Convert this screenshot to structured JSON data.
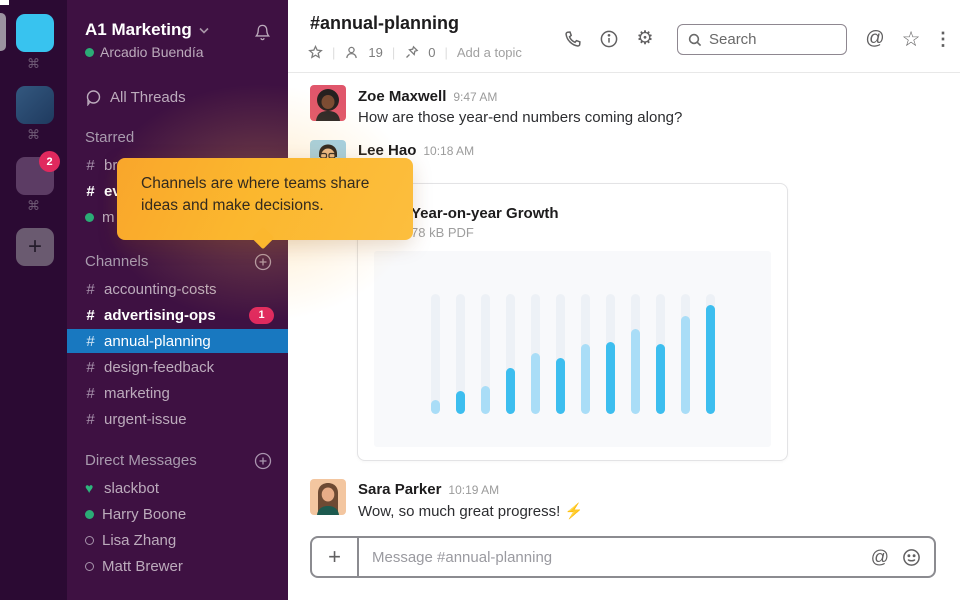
{
  "rail": {
    "workspaces": [
      {
        "name": "workspace-1",
        "badge": ""
      },
      {
        "name": "workspace-2",
        "badge": ""
      },
      {
        "name": "workspace-3",
        "badge": "2"
      }
    ],
    "shortcut_glyph": "⌘",
    "add_label": "+"
  },
  "sidebar": {
    "team_name": "A1 Marketing",
    "user_name": "Arcadio Buendía",
    "all_threads_label": "All Threads",
    "starred": {
      "title": "Starred",
      "items": [
        {
          "prefix": "#",
          "label": "br"
        },
        {
          "prefix": "#",
          "label": "ev"
        },
        {
          "prefix": "dot",
          "label": "m"
        }
      ]
    },
    "channels": {
      "title": "Channels",
      "items": [
        {
          "label": "accounting-costs",
          "badge": ""
        },
        {
          "label": "advertising-ops",
          "badge": "1"
        },
        {
          "label": "annual-planning",
          "badge": ""
        },
        {
          "label": "design-feedback",
          "badge": ""
        },
        {
          "label": "marketing",
          "badge": ""
        },
        {
          "label": "urgent-issue",
          "badge": ""
        }
      ]
    },
    "dms": {
      "title": "Direct Messages",
      "items": [
        {
          "label": "slackbot",
          "presence": "heart"
        },
        {
          "label": "Harry Boone",
          "presence": "online"
        },
        {
          "label": "Lisa Zhang",
          "presence": "offline"
        },
        {
          "label": "Matt Brewer",
          "presence": "offline"
        }
      ]
    }
  },
  "tooltip": {
    "text": "Channels are where teams share ideas and make decisions."
  },
  "header": {
    "channel_title": "#annual-planning",
    "member_count": "19",
    "pin_count": "0",
    "add_topic_label": "Add a topic",
    "search_placeholder": "Search"
  },
  "messages": [
    {
      "name": "Zoe Maxwell",
      "time": "9:47 AM",
      "text": "How are those year-end numbers coming along?"
    },
    {
      "name": "Lee Hao",
      "time": "10:18 AM",
      "attachment": {
        "title": "Year-on-year Growth",
        "meta": "78 kB PDF"
      }
    },
    {
      "name": "Sara Parker",
      "time": "10:19 AM",
      "text": "Wow, so much great progress!",
      "emoji": "⚡"
    }
  ],
  "composer": {
    "placeholder": "Message #annual-planning"
  },
  "icons": {
    "gear": "⚙",
    "star": "☆",
    "kebab": "⋮",
    "at": "@",
    "heart": "♥",
    "plus": "+"
  },
  "colors": {
    "rail_bg": "#2B0A33",
    "sidebar_bg": "#3E1142",
    "active_channel": "#1878C0",
    "badge": "#E0295E",
    "tooltip": "#FBB72E",
    "presence_green": "#2BAC76"
  },
  "chart_data": {
    "type": "bar",
    "title": "Year-on-year Growth",
    "xlabel": "",
    "ylabel": "",
    "axes_visible": false,
    "categories": [
      "1",
      "2",
      "3",
      "4",
      "5",
      "6",
      "7",
      "8",
      "9",
      "10",
      "11",
      "12"
    ],
    "values_pct": [
      12,
      19,
      23,
      38,
      51,
      47,
      58,
      60,
      71,
      58,
      82,
      91
    ],
    "ylim": [
      0,
      100
    ],
    "bar_shades": [
      "light",
      "bright",
      "light",
      "bright",
      "light",
      "bright",
      "light",
      "bright",
      "light",
      "bright",
      "light",
      "bright"
    ],
    "colors": {
      "light": "#A9DDF7",
      "bright": "#3DBEEF",
      "track": "#EDF1F6"
    }
  }
}
